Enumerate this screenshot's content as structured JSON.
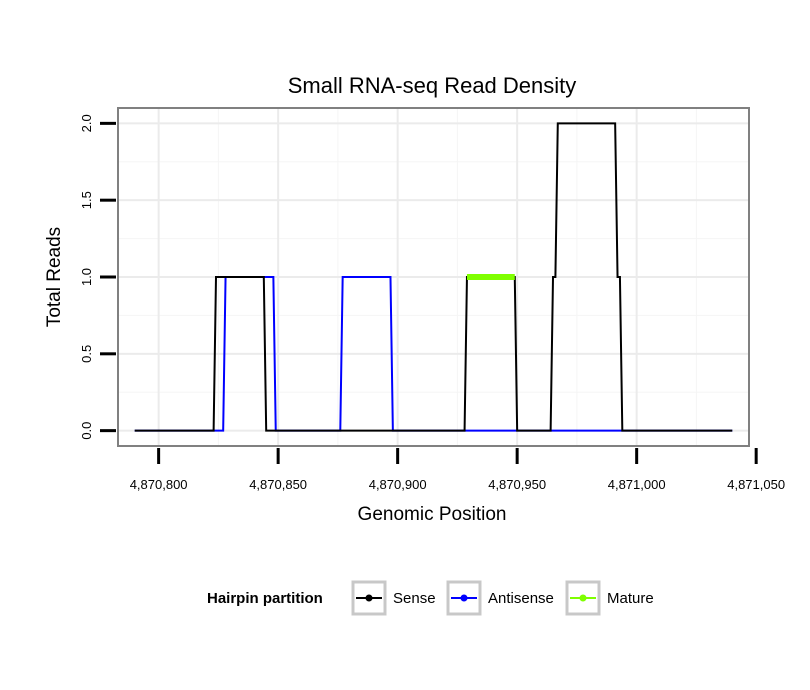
{
  "chart_data": {
    "type": "line",
    "title": "Small RNA-seq Read Density",
    "xlabel": "Genomic Position",
    "ylabel": "Total Reads",
    "xlim": [
      4870783,
      4871047
    ],
    "ylim": [
      -0.1,
      2.1
    ],
    "x_ticks": [
      4870800,
      4870850,
      4870900,
      4870950,
      4871000,
      4871050
    ],
    "x_tick_labels": [
      "4,870,800",
      "4,870,850",
      "4,870,900",
      "4,870,950",
      "4,871,000",
      "4,871,050"
    ],
    "y_ticks": [
      0.0,
      0.5,
      1.0,
      1.5,
      2.0
    ],
    "y_tick_labels": [
      "0.0",
      "0.5",
      "1.0",
      "1.5",
      "2.0"
    ],
    "grid": true,
    "legend": {
      "title": "Hairpin partition",
      "position": "bottom",
      "entries": [
        "Sense",
        "Antisense",
        "Mature"
      ]
    },
    "series": [
      {
        "name": "Antisense",
        "color": "#0000ff",
        "x": [
          4870790,
          4870827,
          4870828,
          4870848,
          4870849,
          4870876,
          4870877,
          4870897,
          4870898,
          4870928,
          4870929,
          4870949,
          4870950,
          4870964,
          4870965,
          4870993,
          4870994,
          4871040
        ],
        "y": [
          0,
          0,
          1,
          1,
          0,
          0,
          1,
          1,
          0,
          0,
          0,
          0,
          0,
          0,
          0,
          0,
          0,
          0
        ]
      },
      {
        "name": "Sense",
        "color": "#000000",
        "x": [
          4870790,
          4870823,
          4870824,
          4870844,
          4870845,
          4870928,
          4870929,
          4870949,
          4870950,
          4870964,
          4870965,
          4870966,
          4870967,
          4870991,
          4870992,
          4870993,
          4870994,
          4871040
        ],
        "y": [
          0,
          0,
          1,
          1,
          0,
          0,
          1,
          1,
          0,
          0,
          1,
          1,
          2,
          2,
          1,
          1,
          0,
          0
        ]
      },
      {
        "name": "Mature",
        "color": "#7fff00",
        "x": [
          4870929,
          4870949
        ],
        "y": [
          1,
          1
        ]
      }
    ]
  }
}
